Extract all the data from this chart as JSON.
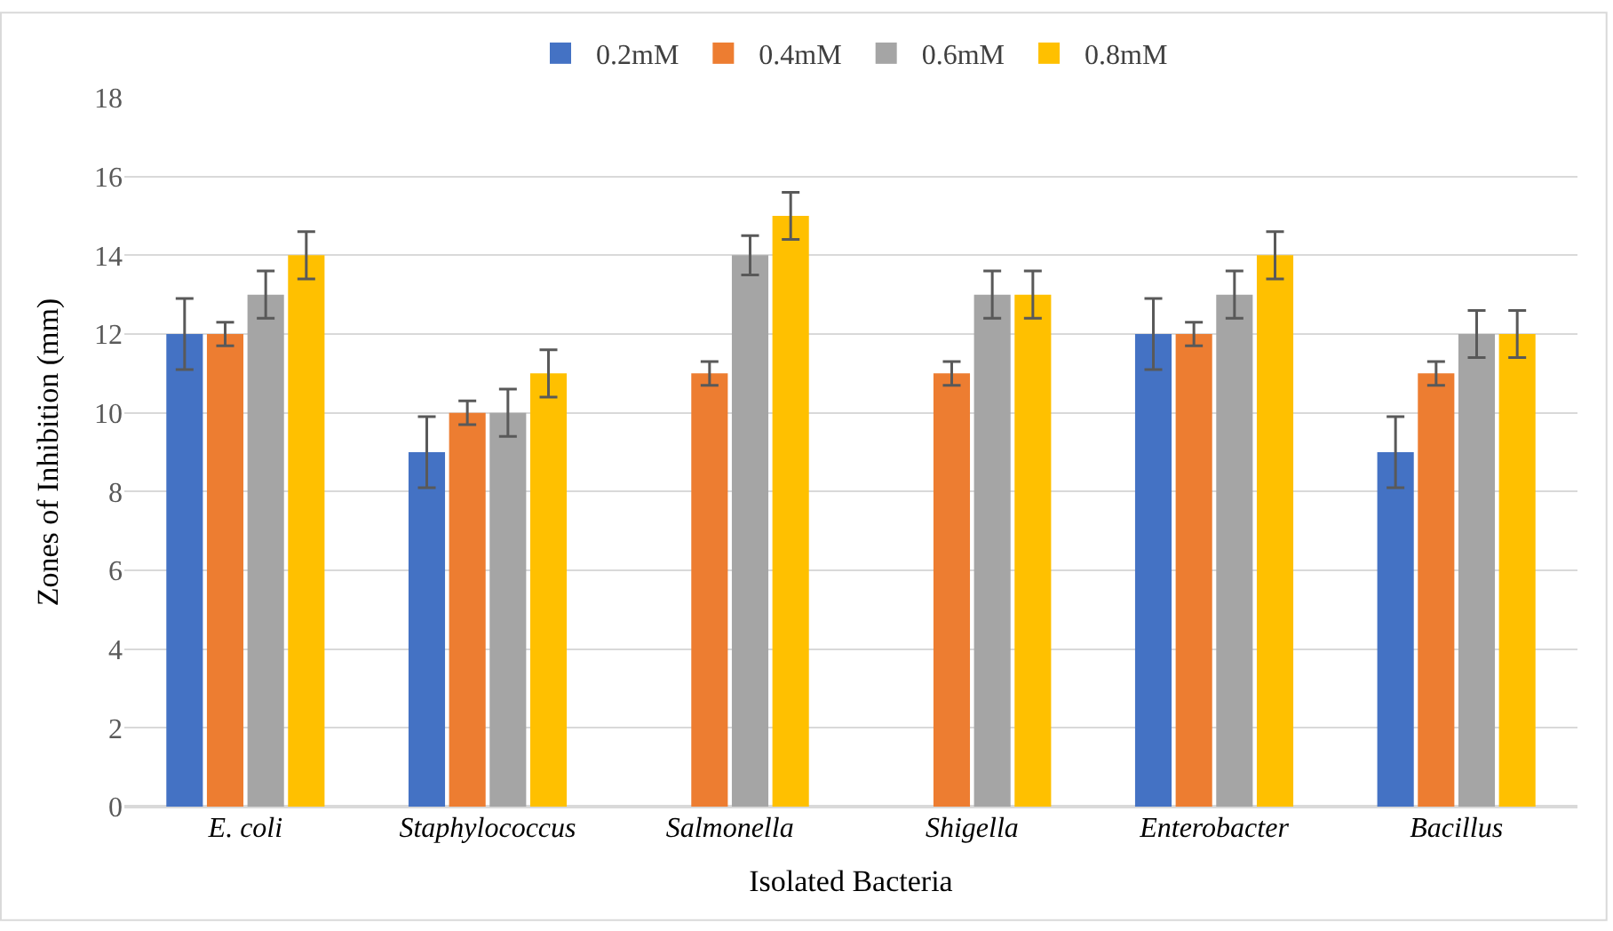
{
  "chart_data": {
    "type": "bar",
    "xlabel": "Isolated Bacteria",
    "ylabel": "Zones of Inhibition (mm)",
    "categories": [
      "E. coli",
      "Staphylococcus",
      "Salmonella",
      "Shigella",
      "Enterobacter",
      "Bacillus"
    ],
    "series": [
      {
        "name": "0.2mM",
        "color": "#4472c4",
        "values": [
          12,
          9,
          null,
          null,
          12,
          9
        ],
        "errors": [
          0.9,
          0.9,
          null,
          null,
          0.9,
          0.9
        ]
      },
      {
        "name": "0.4mM",
        "color": "#ed7d31",
        "values": [
          12,
          10,
          11,
          11,
          12,
          11
        ],
        "errors": [
          0.3,
          0.3,
          0.3,
          0.3,
          0.3,
          0.3
        ]
      },
      {
        "name": "0.6mM",
        "color": "#a5a5a5",
        "values": [
          13,
          10,
          14,
          13,
          13,
          12
        ],
        "errors": [
          0.6,
          0.6,
          0.5,
          0.6,
          0.6,
          0.6
        ]
      },
      {
        "name": "0.8mM",
        "color": "#ffc000",
        "values": [
          14,
          11,
          15,
          13,
          14,
          12
        ],
        "errors": [
          0.6,
          0.6,
          0.6,
          0.6,
          0.6,
          0.6
        ]
      }
    ],
    "ylim": [
      0,
      18
    ],
    "yticks": [
      0,
      2,
      4,
      6,
      8,
      10,
      12,
      14,
      16,
      18
    ],
    "grid": "y",
    "legend": "top"
  }
}
